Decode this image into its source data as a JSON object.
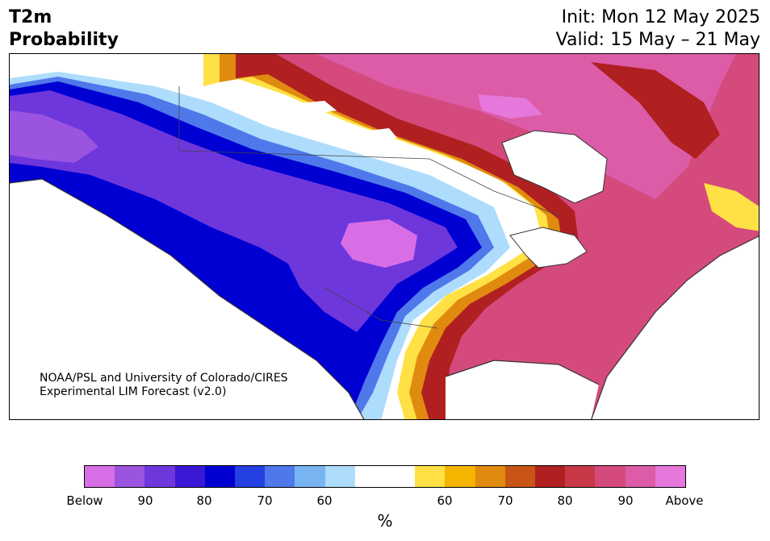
{
  "header": {
    "variable": "T2m",
    "product": "Probability",
    "init": "Init: Mon 12 May 2025",
    "valid": "Valid: 15 May – 21 May"
  },
  "map": {
    "region": "North America",
    "credit_line1": "NOAA/PSL and University of Colorado/CIRES",
    "credit_line2": "Experimental LIM Forecast (v2.0)"
  },
  "colorbar": {
    "unit": "%",
    "ticks": [
      "Below",
      "90",
      "80",
      "70",
      "60",
      "60",
      "70",
      "80",
      "90",
      "Above"
    ],
    "colors": [
      "#d86ee6",
      "#9b54e0",
      "#6e37dc",
      "#3b18d6",
      "#0000d2",
      "#2440e0",
      "#4f78ea",
      "#78b4f2",
      "#aedcfc",
      "#ffffff",
      "#ffffff",
      "#ffe145",
      "#f4b400",
      "#e08a10",
      "#c85418",
      "#b02020",
      "#c83848",
      "#d44a7c",
      "#dc5ca8",
      "#e678dc"
    ]
  }
}
